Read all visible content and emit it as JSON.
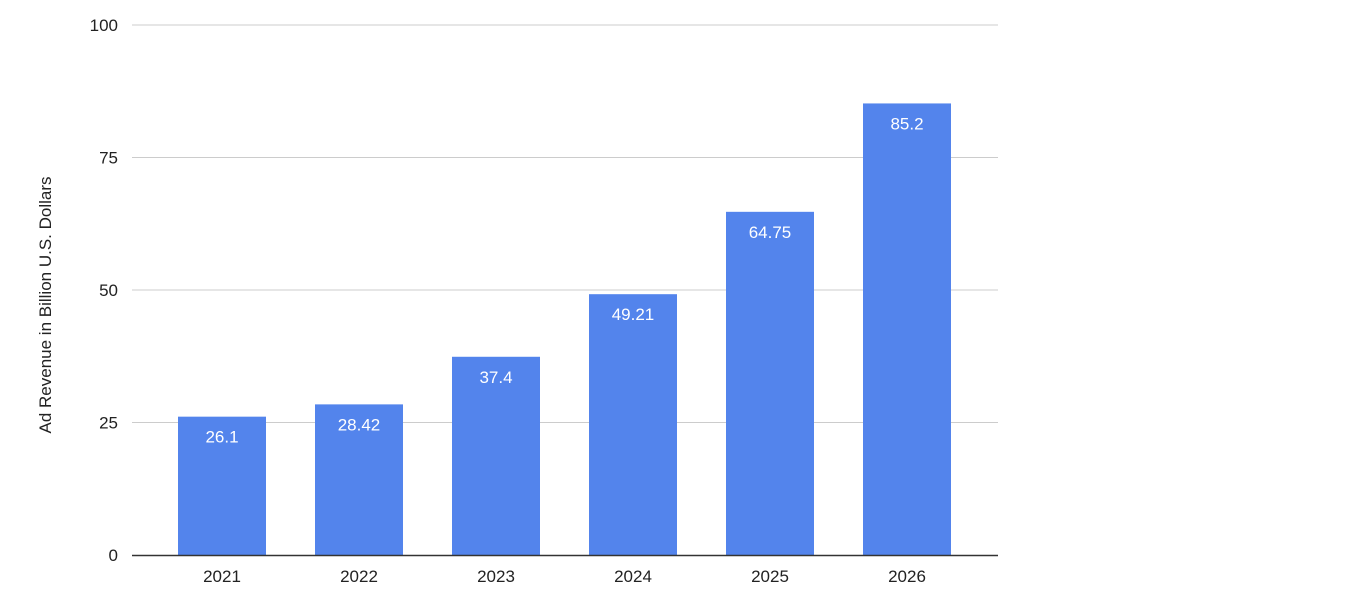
{
  "chart_data": {
    "type": "bar",
    "title": "",
    "xlabel": "",
    "ylabel": "Ad Revenue in Billion U.S. Dollars",
    "categories": [
      "2021",
      "2022",
      "2023",
      "2024",
      "2025",
      "2026"
    ],
    "values": [
      26.1,
      28.42,
      37.4,
      49.21,
      64.75,
      85.2
    ],
    "data_labels": [
      "26.1",
      "28.42",
      "37.4",
      "49.21",
      "64.75",
      "85.2"
    ],
    "ylim": [
      0,
      100
    ],
    "yticks": [
      0,
      25,
      50,
      75,
      100
    ],
    "grid": true,
    "legend": "none",
    "colors": {
      "bar": "#5384ec",
      "grid": "#cccccc",
      "axis": "#333333"
    }
  }
}
